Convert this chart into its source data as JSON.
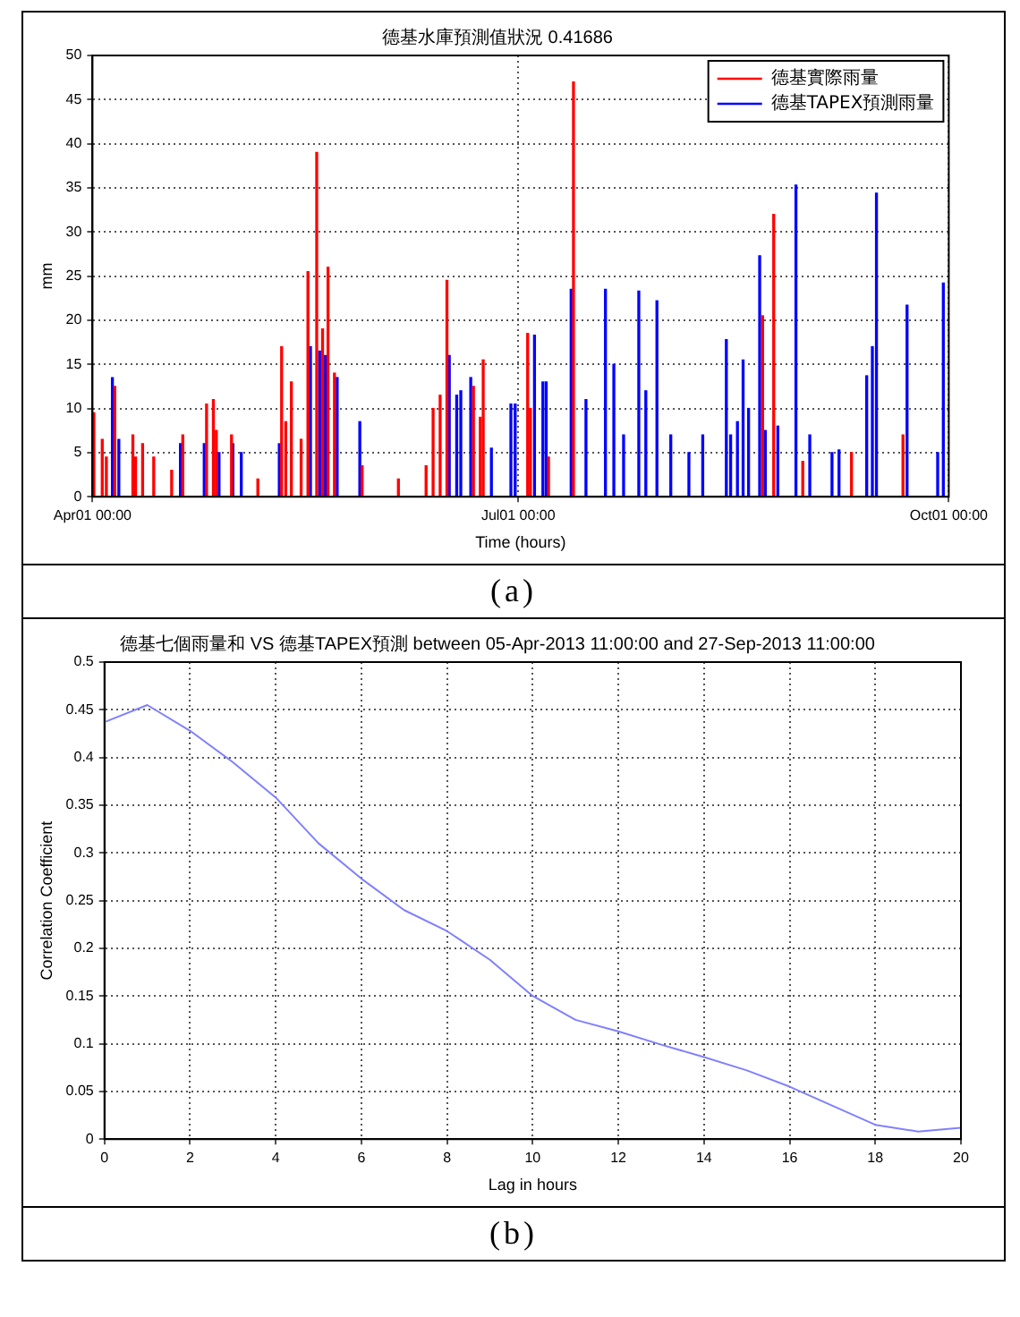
{
  "chart_data": [
    {
      "type": "bar",
      "title": "德基水庫預測值狀況 0.41686",
      "xlabel": "Time (hours)",
      "ylabel": "mm",
      "xlim": [
        "2013-04-01T00:00",
        "2013-10-01T00:00"
      ],
      "xticks": [
        {
          "value": "2013-04-01T00:00",
          "label": "Apr01 00:00"
        },
        {
          "value": "2013-07-01T00:00",
          "label": "Jul01 00:00"
        },
        {
          "value": "2013-10-01T00:00",
          "label": "Oct01 00:00"
        }
      ],
      "ylim": [
        0,
        50
      ],
      "yticks": [
        0,
        5,
        10,
        15,
        20,
        25,
        30,
        35,
        40,
        45,
        50
      ],
      "grid": true,
      "legend": "top right",
      "annotations": [
        "(a)"
      ],
      "series": [
        {
          "name": "德基實際雨量",
          "color": "#ff0000",
          "x": [
            "2013-04-01T07:00",
            "2013-04-03T02:00",
            "2013-04-03T23:00",
            "2013-04-05T18:00",
            "2013-04-09T15:00",
            "2013-04-10T05:00",
            "2013-04-11T17:00",
            "2013-04-14T02:00",
            "2013-04-17T22:00",
            "2013-04-20T07:00",
            "2013-04-25T09:00",
            "2013-04-26T20:00",
            "2013-04-27T11:00",
            "2013-04-30T17:00",
            "2013-05-06T08:00",
            "2013-05-11T10:00",
            "2013-05-12T07:00",
            "2013-05-13T12:00",
            "2013-05-15T14:00",
            "2013-05-17T01:00",
            "2013-05-18T22:00",
            "2013-05-20T04:00",
            "2013-05-21T08:00",
            "2013-05-22T17:00",
            "2013-05-28T15:00",
            "2013-06-05T09:00",
            "2013-06-11T07:00",
            "2013-06-12T19:00",
            "2013-06-14T07:00",
            "2013-06-15T18:00",
            "2013-06-21T10:00",
            "2013-06-22T21:00",
            "2013-06-23T12:00",
            "2013-07-03T00:00",
            "2013-07-03T14:00",
            "2013-07-07T11:00",
            "2013-07-12T19:00",
            "2013-08-22T05:00",
            "2013-08-24T14:00",
            "2013-08-30T19:00",
            "2013-09-10T05:00",
            "2013-09-21T05:00"
          ],
          "values": [
            9.5,
            6.5,
            4.5,
            12.5,
            7,
            4.5,
            6,
            4.5,
            3,
            7,
            10.5,
            11,
            7.5,
            7,
            2,
            17,
            8.5,
            13,
            6.5,
            25.5,
            39,
            19,
            26,
            14,
            3.5,
            2,
            3.5,
            10,
            11.5,
            24.5,
            12.5,
            9,
            15.5,
            18.5,
            10,
            4.5,
            47,
            20.5,
            32,
            4,
            5,
            7
          ]
        },
        {
          "name": "德基TAPEX預測雨量",
          "color": "#0000ff",
          "x": [
            "2013-04-05T06:00",
            "2013-04-06T15:00",
            "2013-04-19T19:00",
            "2013-04-24T21:00",
            "2013-04-28T01:00",
            "2013-05-01T00:00",
            "2013-05-02T19:00",
            "2013-05-10T22:00",
            "2013-05-17T14:00",
            "2013-05-19T13:00",
            "2013-05-20T18:00",
            "2013-05-23T07:00",
            "2013-05-28T03:00",
            "2013-06-16T06:00",
            "2013-06-17T20:00",
            "2013-06-18T17:00",
            "2013-06-20T20:00",
            "2013-06-25T06:00",
            "2013-06-29T10:00",
            "2013-06-30T08:00",
            "2013-07-04T11:00",
            "2013-07-06T06:00",
            "2013-07-06T23:00",
            "2013-07-12T07:00",
            "2013-07-15T11:00",
            "2013-07-19T15:00",
            "2013-07-21T10:00",
            "2013-07-23T12:00",
            "2013-07-26T18:00",
            "2013-07-28T06:00",
            "2013-07-30T15:00",
            "2013-08-02T14:00",
            "2013-08-06T11:00",
            "2013-08-09T10:00",
            "2013-08-14T11:00",
            "2013-08-15T09:00",
            "2013-08-16T20:00",
            "2013-08-18T01:00",
            "2013-08-19T05:00",
            "2013-08-21T14:00",
            "2013-08-22T19:00",
            "2013-08-25T11:00",
            "2013-08-29T08:00",
            "2013-09-01T07:00",
            "2013-09-06T01:00",
            "2013-09-07T13:00",
            "2013-09-13T11:00",
            "2013-09-14T16:00",
            "2013-09-15T13:00",
            "2013-09-22T02:00",
            "2013-09-28T15:00",
            "2013-09-29T20:00"
          ],
          "values": [
            13.5,
            6.5,
            6,
            6,
            5,
            6,
            5,
            6,
            17,
            16.5,
            16,
            13.5,
            8.5,
            16,
            11.5,
            12,
            13.5,
            5.5,
            10.5,
            10.5,
            18.3,
            13,
            13,
            23.5,
            11,
            23.5,
            15,
            7,
            23.3,
            12,
            22.2,
            7,
            5,
            7,
            17.8,
            7,
            8.5,
            15.5,
            10,
            27.3,
            7.5,
            8,
            35.3,
            7,
            5,
            5.3,
            13.7,
            17,
            34.4,
            21.7,
            5,
            24.2
          ]
        }
      ]
    },
    {
      "type": "line",
      "title": "德基七個雨量和 VS 德基TAPEX預測 between 05-Apr-2013 11:00:00 and 27-Sep-2013 11:00:00",
      "xlabel": "Lag in hours",
      "ylabel": "Correlation Coefficient",
      "xlim": [
        0,
        20
      ],
      "xticks": [
        0,
        2,
        4,
        6,
        8,
        10,
        12,
        14,
        16,
        18,
        20
      ],
      "ylim": [
        0,
        0.5
      ],
      "yticks": [
        0,
        0.05,
        0.1,
        0.15,
        0.2,
        0.25,
        0.3,
        0.35,
        0.4,
        0.45,
        0.5
      ],
      "grid": true,
      "marker": "none",
      "line_style": "solid",
      "annotations": [
        "(b)"
      ],
      "series": [
        {
          "color": "#8080ff",
          "x": [
            0,
            1,
            2,
            3,
            4,
            5,
            6,
            7,
            8,
            9,
            10,
            11,
            12,
            13,
            14,
            15,
            16,
            17,
            18,
            19,
            20
          ],
          "values": [
            0.437,
            0.455,
            0.428,
            0.395,
            0.358,
            0.31,
            0.273,
            0.24,
            0.218,
            0.188,
            0.15,
            0.125,
            0.113,
            0.099,
            0.086,
            0.072,
            0.055,
            0.035,
            0.015,
            0.008,
            0.012
          ]
        }
      ]
    }
  ]
}
